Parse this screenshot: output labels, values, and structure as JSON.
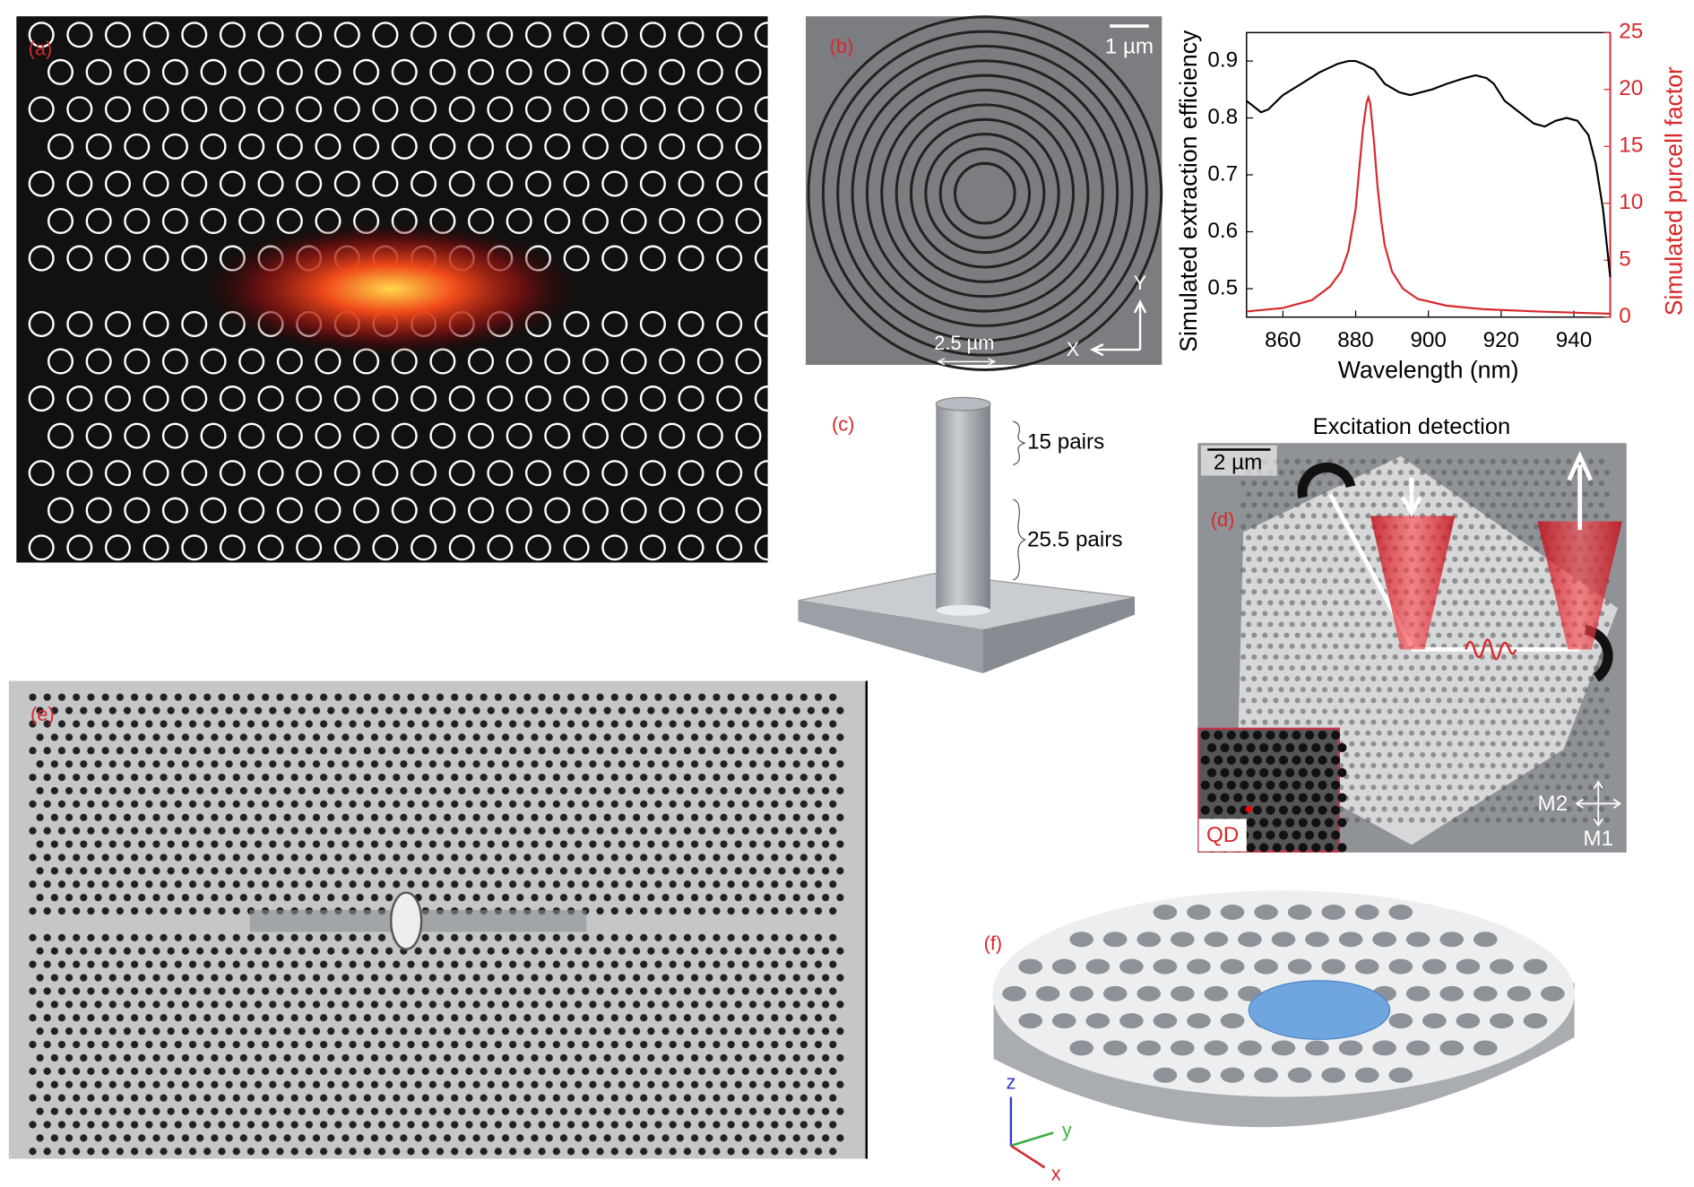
{
  "panels": {
    "a": {
      "label": "(a)"
    },
    "b": {
      "label": "(b)",
      "scale_bar": "1 µm",
      "axis_y": "Y",
      "axis_x": "X",
      "dimension": "2.5 µm"
    },
    "c": {
      "label": "(c)",
      "top_stack": "15 pairs",
      "bottom_stack": "25.5 pairs"
    },
    "d": {
      "title": "Excitation detection",
      "label": "(d)",
      "scale_bar": "2 µm",
      "inset": "QD",
      "axis_h": "M2",
      "axis_v": "M1"
    },
    "e": {
      "label": "(e)"
    },
    "f": {
      "label": "(f)",
      "axis_z": "z",
      "axis_y": "y",
      "axis_x": "x"
    }
  },
  "chart_data": {
    "type": "line",
    "x_label": "Wavelength (nm)",
    "y_label": "Simulated extraction efficiency",
    "y2_label": "Simulated purcell factor",
    "xlim": [
      850,
      950
    ],
    "xticks": [
      860,
      880,
      900,
      920,
      940
    ],
    "ylim": [
      0.45,
      0.95
    ],
    "yticks": [
      0.5,
      0.6,
      0.7,
      0.8,
      0.9
    ],
    "y2lim": [
      0,
      25
    ],
    "y2ticks": [
      0,
      5,
      10,
      15,
      20,
      25
    ],
    "y2_color": "#d8282a",
    "series": [
      {
        "color": "#000000",
        "x": [
          850,
          852,
          854,
          856,
          860,
          865,
          870,
          875,
          878,
          880,
          882,
          885,
          888,
          892,
          895,
          898,
          901,
          905,
          910,
          913,
          916,
          918,
          921,
          925,
          929,
          932,
          935,
          938,
          941,
          944,
          946,
          948,
          950
        ],
        "values": [
          0.83,
          0.82,
          0.81,
          0.815,
          0.84,
          0.86,
          0.88,
          0.895,
          0.9,
          0.9,
          0.895,
          0.885,
          0.86,
          0.845,
          0.84,
          0.845,
          0.85,
          0.86,
          0.87,
          0.875,
          0.87,
          0.86,
          0.83,
          0.81,
          0.79,
          0.785,
          0.795,
          0.8,
          0.795,
          0.77,
          0.72,
          0.64,
          0.52
        ]
      },
      {
        "color": "#d8282a",
        "axis": "y2",
        "x": [
          850,
          860,
          868,
          873,
          876,
          878,
          880,
          881,
          882,
          883,
          883.5,
          884,
          885,
          886,
          887,
          888,
          890,
          893,
          897,
          905,
          915,
          930,
          950
        ],
        "values": [
          0.5,
          0.8,
          1.5,
          2.7,
          4,
          5.8,
          9.5,
          13,
          16.5,
          18.8,
          19.3,
          18.8,
          15.5,
          11.5,
          8.5,
          6.3,
          4,
          2.5,
          1.6,
          1,
          0.7,
          0.5,
          0.3
        ]
      }
    ]
  }
}
